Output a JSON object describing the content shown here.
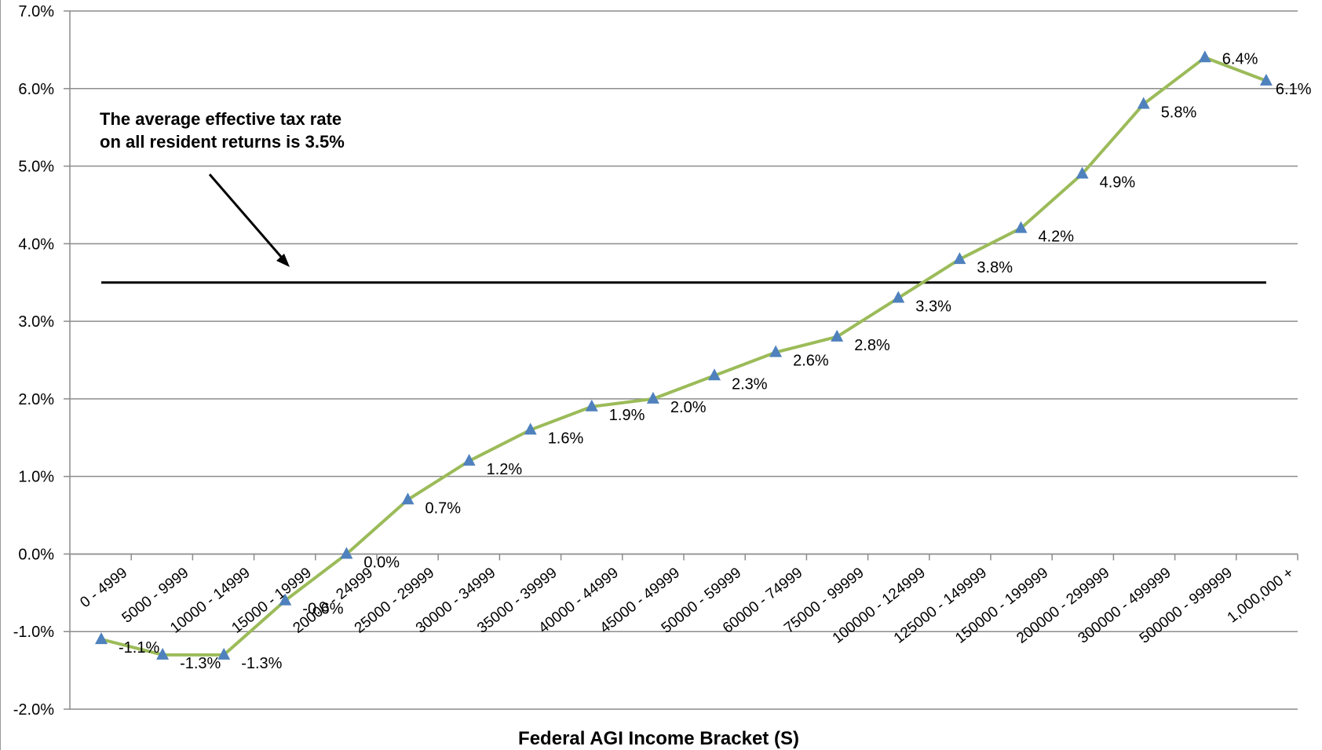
{
  "chart_data": {
    "type": "line",
    "title": "",
    "xlabel": "Federal AGI Income Bracket (S)",
    "ylabel": "",
    "ylim": [
      -2.0,
      7.0
    ],
    "yticks": [
      "-2.0%",
      "-1.0%",
      "0.0%",
      "1.0%",
      "2.0%",
      "3.0%",
      "4.0%",
      "5.0%",
      "6.0%",
      "7.0%"
    ],
    "grid": true,
    "categories": [
      "0 - 4999",
      "5000 - 9999",
      "10000 - 14999",
      "15000 - 19999",
      "20000 - 24999",
      "25000 - 29999",
      "30000 - 34999",
      "35000 - 39999",
      "40000 - 44999",
      "45000 - 49999",
      "50000 - 59999",
      "60000 - 74999",
      "75000 - 99999",
      "100000 - 124999",
      "125000 - 149999",
      "150000 - 199999",
      "200000 - 299999",
      "300000 - 499999",
      "500000 - 999999",
      "1,000,000 +"
    ],
    "series": [
      {
        "values": [
          -1.1,
          -1.3,
          -1.3,
          -0.6,
          0.0,
          0.7,
          1.2,
          1.6,
          1.9,
          2.0,
          2.3,
          2.6,
          2.8,
          3.3,
          3.8,
          4.2,
          4.9,
          5.8,
          6.4,
          6.1
        ],
        "labels": [
          "-1.1%",
          "-1.3%",
          "-1.3%",
          "-0.6%",
          "0.0%",
          "0.7%",
          "1.2%",
          "1.6%",
          "1.9%",
          "2.0%",
          "2.3%",
          "2.6%",
          "2.8%",
          "3.3%",
          "3.8%",
          "4.2%",
          "4.9%",
          "5.8%",
          "6.4%",
          "6.1%"
        ],
        "line_color": "#9BBB59",
        "marker_color": "#4F81BD",
        "marker": "triangle"
      }
    ],
    "reference_line": {
      "value": 3.5,
      "color": "#000000"
    },
    "annotation": {
      "lines": [
        "The average effective tax rate",
        "on all resident returns is 3.5%"
      ]
    }
  }
}
